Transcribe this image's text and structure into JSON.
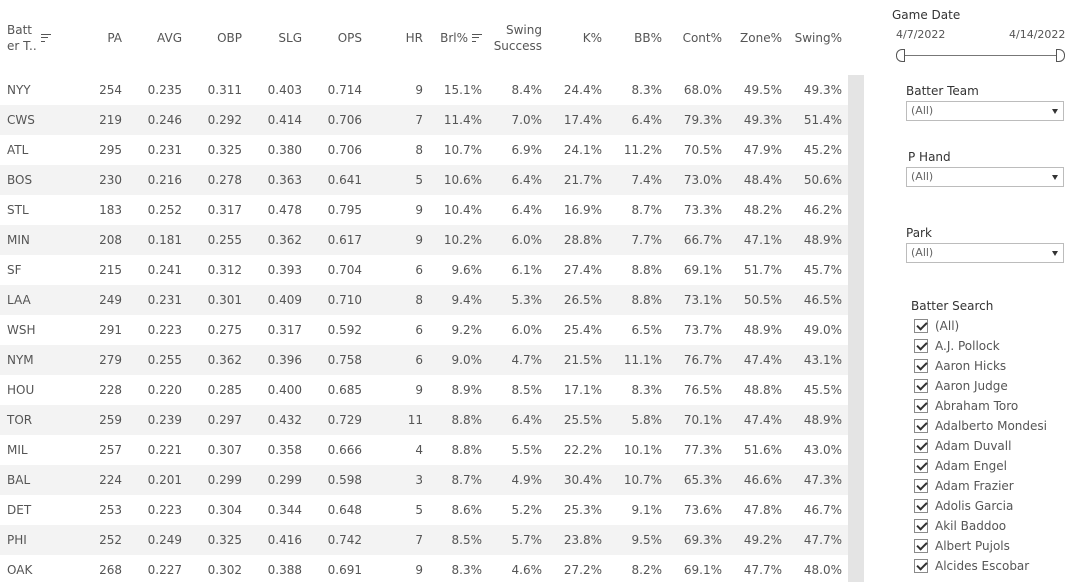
{
  "table": {
    "columns": [
      {
        "label": "Batt\ner T..",
        "sort_icon": true
      },
      {
        "label": "PA"
      },
      {
        "label": "AVG"
      },
      {
        "label": "OBP"
      },
      {
        "label": "SLG"
      },
      {
        "label": "OPS"
      },
      {
        "label": "HR"
      },
      {
        "label": "Brl%",
        "sort_icon": true
      },
      {
        "label": "Swing\nSuccess"
      },
      {
        "label": "K%"
      },
      {
        "label": "BB%"
      },
      {
        "label": "Cont%"
      },
      {
        "label": "Zone%"
      },
      {
        "label": "Swing%"
      }
    ],
    "rows": [
      [
        "NYY",
        "254",
        "0.235",
        "0.311",
        "0.403",
        "0.714",
        "9",
        "15.1%",
        "8.4%",
        "24.4%",
        "8.3%",
        "68.0%",
        "49.5%",
        "49.3%"
      ],
      [
        "CWS",
        "219",
        "0.246",
        "0.292",
        "0.414",
        "0.706",
        "7",
        "11.4%",
        "7.0%",
        "17.4%",
        "6.4%",
        "79.3%",
        "49.3%",
        "51.4%"
      ],
      [
        "ATL",
        "295",
        "0.231",
        "0.325",
        "0.380",
        "0.706",
        "8",
        "10.7%",
        "6.9%",
        "24.1%",
        "11.2%",
        "70.5%",
        "47.9%",
        "45.2%"
      ],
      [
        "BOS",
        "230",
        "0.216",
        "0.278",
        "0.363",
        "0.641",
        "5",
        "10.6%",
        "6.4%",
        "21.7%",
        "7.4%",
        "73.0%",
        "48.4%",
        "50.6%"
      ],
      [
        "STL",
        "183",
        "0.252",
        "0.317",
        "0.478",
        "0.795",
        "9",
        "10.4%",
        "6.4%",
        "16.9%",
        "8.7%",
        "73.3%",
        "48.2%",
        "46.2%"
      ],
      [
        "MIN",
        "208",
        "0.181",
        "0.255",
        "0.362",
        "0.617",
        "9",
        "10.2%",
        "6.0%",
        "28.8%",
        "7.7%",
        "66.7%",
        "47.1%",
        "48.9%"
      ],
      [
        "SF",
        "215",
        "0.241",
        "0.312",
        "0.393",
        "0.704",
        "6",
        "9.6%",
        "6.1%",
        "27.4%",
        "8.8%",
        "69.1%",
        "51.7%",
        "45.7%"
      ],
      [
        "LAA",
        "249",
        "0.231",
        "0.301",
        "0.409",
        "0.710",
        "8",
        "9.4%",
        "5.3%",
        "26.5%",
        "8.8%",
        "73.1%",
        "50.5%",
        "46.5%"
      ],
      [
        "WSH",
        "291",
        "0.223",
        "0.275",
        "0.317",
        "0.592",
        "6",
        "9.2%",
        "6.0%",
        "25.4%",
        "6.5%",
        "73.7%",
        "48.9%",
        "49.0%"
      ],
      [
        "NYM",
        "279",
        "0.255",
        "0.362",
        "0.396",
        "0.758",
        "6",
        "9.0%",
        "4.7%",
        "21.5%",
        "11.1%",
        "76.7%",
        "47.4%",
        "43.1%"
      ],
      [
        "HOU",
        "228",
        "0.220",
        "0.285",
        "0.400",
        "0.685",
        "9",
        "8.9%",
        "8.5%",
        "17.1%",
        "8.3%",
        "76.5%",
        "48.8%",
        "45.5%"
      ],
      [
        "TOR",
        "259",
        "0.239",
        "0.297",
        "0.432",
        "0.729",
        "11",
        "8.8%",
        "6.4%",
        "25.5%",
        "5.8%",
        "70.1%",
        "47.4%",
        "48.9%"
      ],
      [
        "MIL",
        "257",
        "0.221",
        "0.307",
        "0.358",
        "0.666",
        "4",
        "8.8%",
        "5.5%",
        "22.2%",
        "10.1%",
        "77.3%",
        "51.6%",
        "43.0%"
      ],
      [
        "BAL",
        "224",
        "0.201",
        "0.299",
        "0.299",
        "0.598",
        "3",
        "8.7%",
        "4.9%",
        "30.4%",
        "10.7%",
        "65.3%",
        "46.6%",
        "47.3%"
      ],
      [
        "DET",
        "253",
        "0.223",
        "0.304",
        "0.344",
        "0.648",
        "5",
        "8.6%",
        "5.2%",
        "25.3%",
        "9.1%",
        "73.6%",
        "47.8%",
        "46.7%"
      ],
      [
        "PHI",
        "252",
        "0.249",
        "0.325",
        "0.416",
        "0.742",
        "7",
        "8.5%",
        "5.7%",
        "23.8%",
        "9.5%",
        "69.3%",
        "49.2%",
        "47.7%"
      ],
      [
        "OAK",
        "268",
        "0.227",
        "0.302",
        "0.388",
        "0.691",
        "9",
        "8.3%",
        "4.6%",
        "27.2%",
        "8.2%",
        "69.1%",
        "47.7%",
        "48.0%"
      ]
    ]
  },
  "filters": {
    "game_date": {
      "title": "Game Date",
      "start": "4/7/2022",
      "end": "4/14/2022"
    },
    "batter_team": {
      "title": "Batter Team",
      "value": "(All)"
    },
    "p_hand": {
      "title": "P Hand",
      "value": "(All)"
    },
    "park": {
      "title": "Park",
      "value": "(All)"
    },
    "batter_search": {
      "title": "Batter Search",
      "items": [
        "(All)",
        "A.J. Pollock",
        "Aaron Hicks",
        "Aaron Judge",
        "Abraham Toro",
        "Adalberto Mondesi",
        "Adam Duvall",
        "Adam Engel",
        "Adam Frazier",
        "Adolis Garcia",
        "Akil Baddoo",
        "Albert Pujols",
        "Alcides Escobar"
      ]
    }
  }
}
